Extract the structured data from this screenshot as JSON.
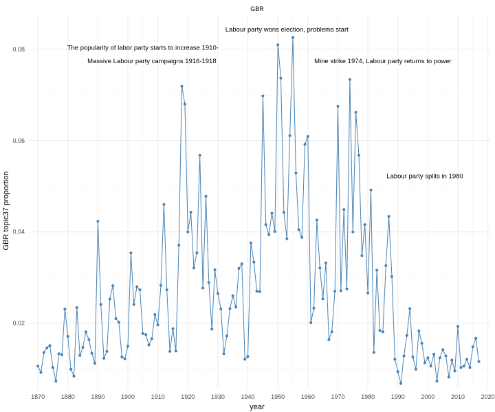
{
  "chart_data": {
    "type": "line",
    "title": "GBR",
    "xlabel": "year",
    "ylabel": "GBR topic37 proportion",
    "xlim": [
      1867,
      2021
    ],
    "ylim": [
      0.0055,
      0.0875
    ],
    "x_ticks": [
      1870,
      1880,
      1890,
      1900,
      1910,
      1920,
      1930,
      1940,
      1950,
      1960,
      1970,
      1980,
      1990,
      2000,
      2010,
      2020
    ],
    "x_ticks_minor": [
      1875,
      1885,
      1895,
      1905,
      1915,
      1925,
      1935,
      1945,
      1955,
      1965,
      1975,
      1985,
      1995,
      2005,
      2015
    ],
    "y_ticks": [
      0.02,
      0.04,
      0.06,
      0.08
    ],
    "y_ticks_minor": [
      0.01,
      0.03,
      0.05,
      0.07
    ],
    "y_tick_labels": [
      "0.02",
      "0.04",
      "0.06",
      "0.08"
    ],
    "x_tick_ticks_every": 2,
    "grid": true,
    "series": [
      {
        "color": "#4682b4",
        "x": [
          1870,
          1871,
          1872,
          1873,
          1874,
          1875,
          1876,
          1877,
          1878,
          1879,
          1880,
          1881,
          1882,
          1883,
          1884,
          1885,
          1886,
          1887,
          1888,
          1889,
          1890,
          1891,
          1892,
          1893,
          1894,
          1895,
          1896,
          1897,
          1898,
          1899,
          1900,
          1901,
          1902,
          1903,
          1904,
          1905,
          1906,
          1907,
          1908,
          1909,
          1910,
          1911,
          1912,
          1913,
          1914,
          1915,
          1916,
          1917,
          1918,
          1919,
          1920,
          1921,
          1922,
          1923,
          1924,
          1925,
          1926,
          1927,
          1928,
          1929,
          1930,
          1931,
          1932,
          1933,
          1934,
          1935,
          1936,
          1937,
          1938,
          1939,
          1940,
          1941,
          1942,
          1943,
          1944,
          1945,
          1946,
          1947,
          1948,
          1949,
          1950,
          1951,
          1952,
          1953,
          1954,
          1955,
          1956,
          1957,
          1958,
          1959,
          1960,
          1961,
          1962,
          1963,
          1964,
          1965,
          1966,
          1967,
          1968,
          1969,
          1970,
          1971,
          1972,
          1973,
          1974,
          1975,
          1976,
          1977,
          1978,
          1979,
          1980,
          1981,
          1982,
          1983,
          1984,
          1985,
          1986,
          1987,
          1988,
          1989,
          1990,
          1991,
          1992,
          1993,
          1994,
          1995,
          1996,
          1997,
          1998,
          1999,
          2000,
          2001,
          2002,
          2003,
          2004,
          2005,
          2006,
          2007,
          2008,
          2009,
          2010,
          2011,
          2012,
          2013,
          2014,
          2015,
          2016,
          2017
        ],
        "y": [
          0.0106,
          0.0092,
          0.0136,
          0.0146,
          0.0151,
          0.0103,
          0.0073,
          0.0133,
          0.0131,
          0.0231,
          0.0171,
          0.0099,
          0.0084,
          0.0234,
          0.0129,
          0.0147,
          0.0181,
          0.0164,
          0.0134,
          0.0112,
          0.0423,
          0.0241,
          0.0123,
          0.0138,
          0.0253,
          0.0282,
          0.021,
          0.0202,
          0.0126,
          0.0122,
          0.015,
          0.0354,
          0.0241,
          0.028,
          0.0273,
          0.0177,
          0.0175,
          0.0152,
          0.0166,
          0.0219,
          0.0196,
          0.0283,
          0.046,
          0.0273,
          0.0138,
          0.0188,
          0.0139,
          0.0371,
          0.0719,
          0.068,
          0.04,
          0.0443,
          0.0321,
          0.0354,
          0.0568,
          0.0277,
          0.0478,
          0.0289,
          0.0187,
          0.0317,
          0.0265,
          0.0231,
          0.0133,
          0.0172,
          0.0232,
          0.026,
          0.0235,
          0.032,
          0.033,
          0.0121,
          0.0127,
          0.0376,
          0.0334,
          0.027,
          0.0269,
          0.0698,
          0.0416,
          0.0394,
          0.0441,
          0.0401,
          0.081,
          0.0737,
          0.0443,
          0.0385,
          0.0611,
          0.0826,
          0.0529,
          0.0405,
          0.0388,
          0.0592,
          0.0609,
          0.0201,
          0.0233,
          0.0426,
          0.0321,
          0.0253,
          0.0332,
          0.0164,
          0.0181,
          0.027,
          0.0675,
          0.0271,
          0.0449,
          0.0275,
          0.0734,
          0.04,
          0.0662,
          0.0568,
          0.0348,
          0.0416,
          0.0266,
          0.0492,
          0.0136,
          0.0316,
          0.0184,
          0.0181,
          0.0326,
          0.0434,
          0.0302,
          0.0121,
          0.0094,
          0.0068,
          0.0128,
          0.0173,
          0.0232,
          0.0126,
          0.0099,
          0.0183,
          0.0156,
          0.0113,
          0.0124,
          0.0106,
          0.0132,
          0.0073,
          0.0124,
          0.0142,
          0.0128,
          0.0082,
          0.0119,
          0.0095,
          0.0193,
          0.0103,
          0.0106,
          0.0121,
          0.0103,
          0.0148,
          0.0167,
          0.0116
        ]
      }
    ],
    "annotations": [
      {
        "text": "Labour party wons election, problems start",
        "x": 1953,
        "y": 0.0839
      },
      {
        "text": "The popularity of labor party starts to increase 1910-",
        "x": 1905,
        "y": 0.0799
      },
      {
        "text": "Massive Labour party campaigns 1916-1918",
        "x": 1908,
        "y": 0.077
      },
      {
        "text": "Mine strike 1974, Labour party returns to power",
        "x": 1985,
        "y": 0.077
      },
      {
        "text": "Labour party splits in 1980",
        "x": 1999,
        "y": 0.0518
      }
    ]
  }
}
